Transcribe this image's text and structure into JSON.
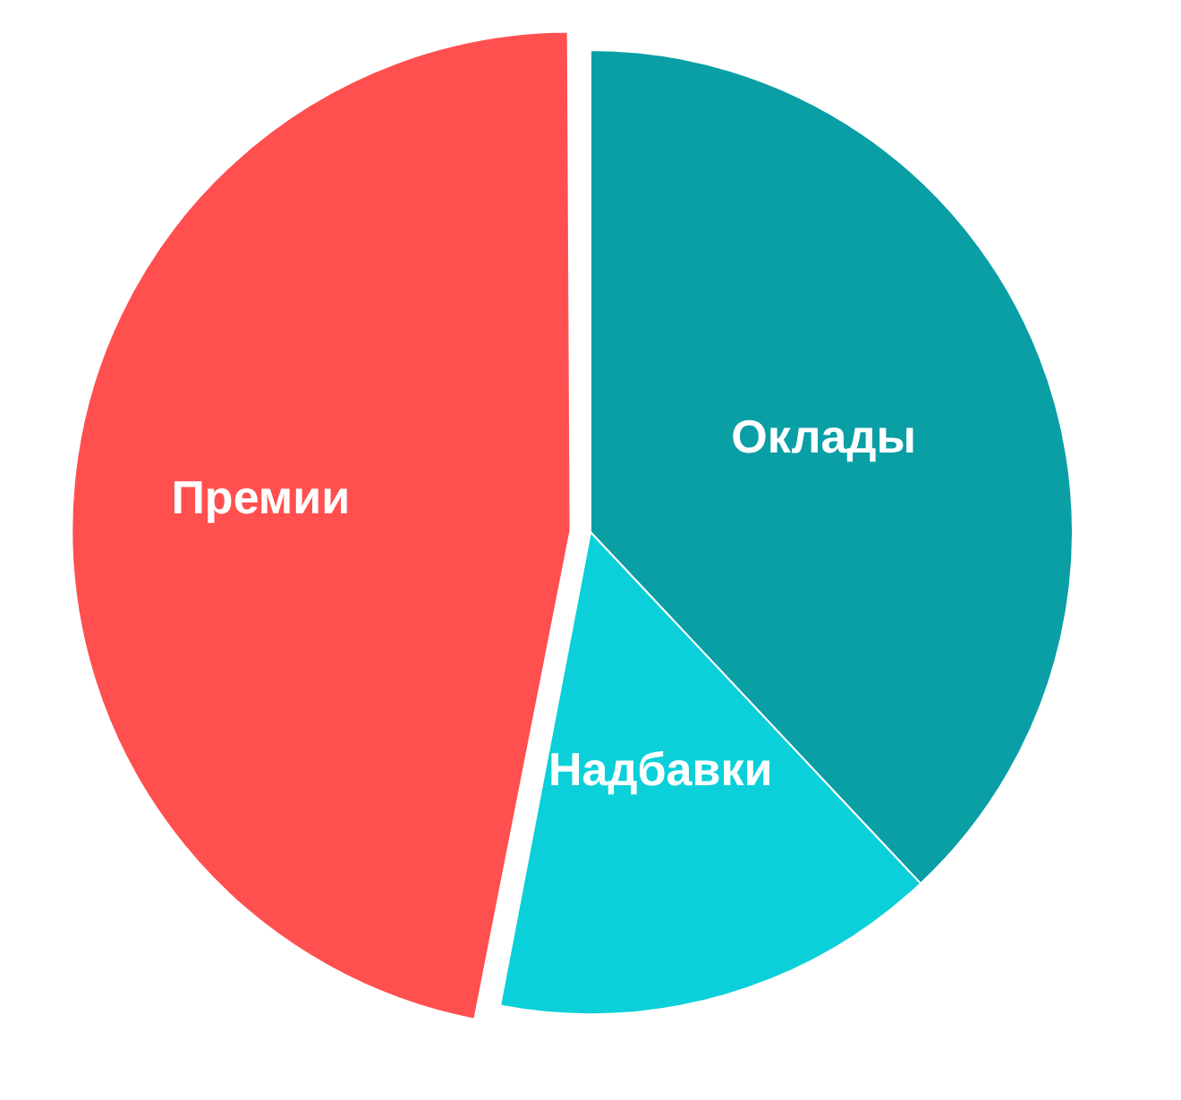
{
  "chart_data": {
    "type": "pie",
    "categories": [
      "Оклады",
      "Надбавки",
      "Премии"
    ],
    "values": [
      38,
      15,
      47
    ],
    "colors": [
      "#0a9ea5",
      "#0bd0d9",
      "#ff4f4f"
    ],
    "data_labels": false,
    "legend": false
  }
}
